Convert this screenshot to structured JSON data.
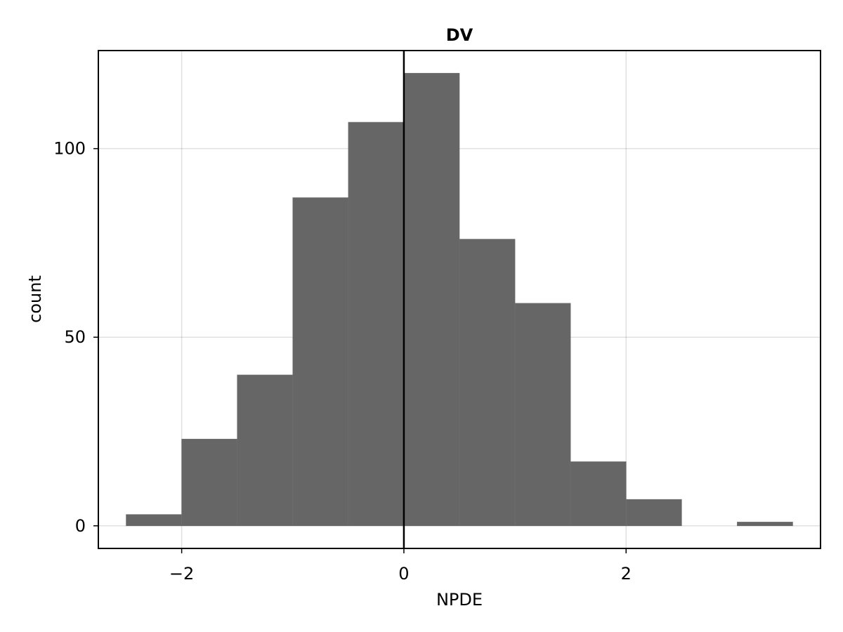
{
  "chart_data": {
    "type": "bar",
    "title": "DV",
    "xlabel": "NPDE",
    "ylabel": "count",
    "xlim": [
      -2.75,
      3.75
    ],
    "ylim": [
      -6,
      126
    ],
    "x_ticks": [
      -2,
      0,
      2
    ],
    "x_tick_labels": [
      "−2",
      "0",
      "2"
    ],
    "y_ticks": [
      0,
      50,
      100
    ],
    "y_tick_labels": [
      "0",
      "50",
      "100"
    ],
    "grid": true,
    "bin_width": 0.5,
    "bins": [
      {
        "x0": -2.5,
        "x1": -2.0,
        "count": 3
      },
      {
        "x0": -2.0,
        "x1": -1.5,
        "count": 23
      },
      {
        "x0": -1.5,
        "x1": -1.0,
        "count": 40
      },
      {
        "x0": -1.0,
        "x1": -0.5,
        "count": 87
      },
      {
        "x0": -0.5,
        "x1": 0.0,
        "count": 107
      },
      {
        "x0": 0.0,
        "x1": 0.5,
        "count": 120
      },
      {
        "x0": 0.5,
        "x1": 1.0,
        "count": 76
      },
      {
        "x0": 1.0,
        "x1": 1.5,
        "count": 59
      },
      {
        "x0": 1.5,
        "x1": 2.0,
        "count": 17
      },
      {
        "x0": 2.0,
        "x1": 2.5,
        "count": 7
      },
      {
        "x0": 3.0,
        "x1": 3.5,
        "count": 1
      }
    ],
    "reference_line_x": 0,
    "bar_color": "#666666",
    "reference_line_color": "#000000"
  }
}
